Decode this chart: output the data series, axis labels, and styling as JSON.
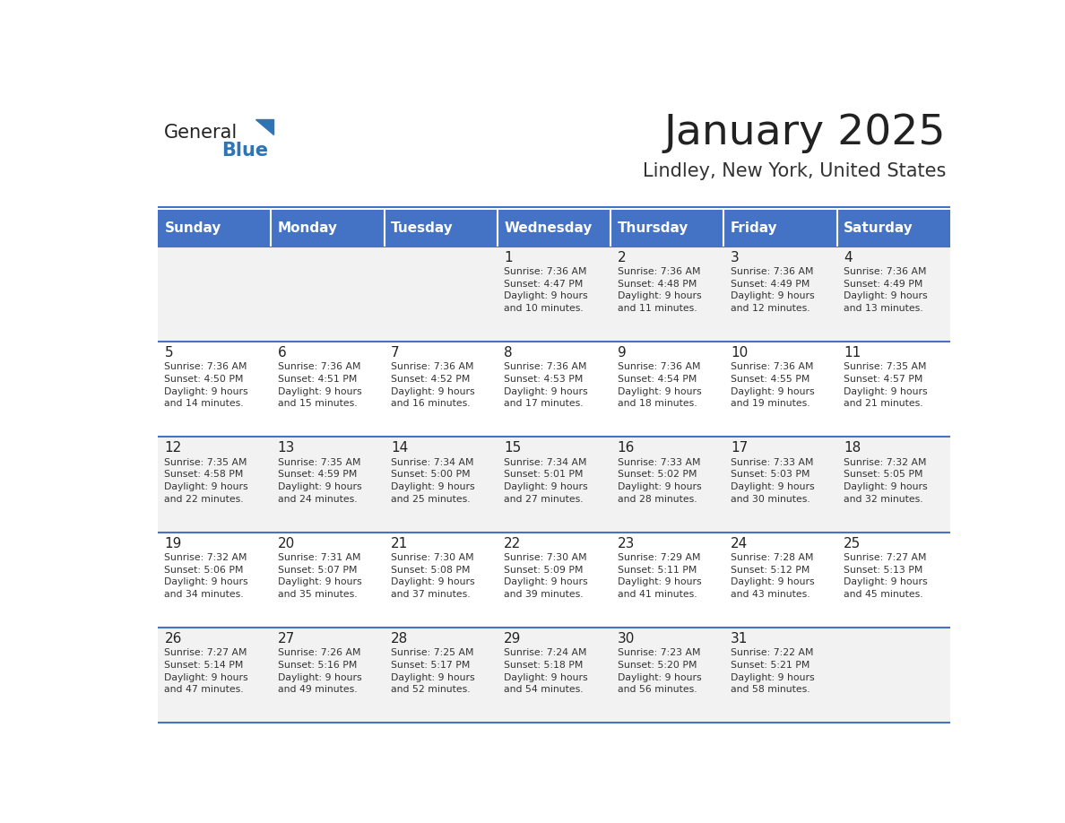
{
  "title": "January 2025",
  "subtitle": "Lindley, New York, United States",
  "days_of_week": [
    "Sunday",
    "Monday",
    "Tuesday",
    "Wednesday",
    "Thursday",
    "Friday",
    "Saturday"
  ],
  "header_bg": "#4472C4",
  "header_text": "#FFFFFF",
  "row_bg_odd": "#F2F2F2",
  "row_bg_even": "#FFFFFF",
  "cell_text": "#333333",
  "day_number_color": "#222222",
  "title_color": "#222222",
  "subtitle_color": "#333333",
  "divider_color": "#4472C4",
  "logo_general_color": "#222222",
  "logo_blue_color": "#2E75B6",
  "weeks": [
    [
      {
        "day": null,
        "text": ""
      },
      {
        "day": null,
        "text": ""
      },
      {
        "day": null,
        "text": ""
      },
      {
        "day": 1,
        "text": "Sunrise: 7:36 AM\nSunset: 4:47 PM\nDaylight: 9 hours\nand 10 minutes."
      },
      {
        "day": 2,
        "text": "Sunrise: 7:36 AM\nSunset: 4:48 PM\nDaylight: 9 hours\nand 11 minutes."
      },
      {
        "day": 3,
        "text": "Sunrise: 7:36 AM\nSunset: 4:49 PM\nDaylight: 9 hours\nand 12 minutes."
      },
      {
        "day": 4,
        "text": "Sunrise: 7:36 AM\nSunset: 4:49 PM\nDaylight: 9 hours\nand 13 minutes."
      }
    ],
    [
      {
        "day": 5,
        "text": "Sunrise: 7:36 AM\nSunset: 4:50 PM\nDaylight: 9 hours\nand 14 minutes."
      },
      {
        "day": 6,
        "text": "Sunrise: 7:36 AM\nSunset: 4:51 PM\nDaylight: 9 hours\nand 15 minutes."
      },
      {
        "day": 7,
        "text": "Sunrise: 7:36 AM\nSunset: 4:52 PM\nDaylight: 9 hours\nand 16 minutes."
      },
      {
        "day": 8,
        "text": "Sunrise: 7:36 AM\nSunset: 4:53 PM\nDaylight: 9 hours\nand 17 minutes."
      },
      {
        "day": 9,
        "text": "Sunrise: 7:36 AM\nSunset: 4:54 PM\nDaylight: 9 hours\nand 18 minutes."
      },
      {
        "day": 10,
        "text": "Sunrise: 7:36 AM\nSunset: 4:55 PM\nDaylight: 9 hours\nand 19 minutes."
      },
      {
        "day": 11,
        "text": "Sunrise: 7:35 AM\nSunset: 4:57 PM\nDaylight: 9 hours\nand 21 minutes."
      }
    ],
    [
      {
        "day": 12,
        "text": "Sunrise: 7:35 AM\nSunset: 4:58 PM\nDaylight: 9 hours\nand 22 minutes."
      },
      {
        "day": 13,
        "text": "Sunrise: 7:35 AM\nSunset: 4:59 PM\nDaylight: 9 hours\nand 24 minutes."
      },
      {
        "day": 14,
        "text": "Sunrise: 7:34 AM\nSunset: 5:00 PM\nDaylight: 9 hours\nand 25 minutes."
      },
      {
        "day": 15,
        "text": "Sunrise: 7:34 AM\nSunset: 5:01 PM\nDaylight: 9 hours\nand 27 minutes."
      },
      {
        "day": 16,
        "text": "Sunrise: 7:33 AM\nSunset: 5:02 PM\nDaylight: 9 hours\nand 28 minutes."
      },
      {
        "day": 17,
        "text": "Sunrise: 7:33 AM\nSunset: 5:03 PM\nDaylight: 9 hours\nand 30 minutes."
      },
      {
        "day": 18,
        "text": "Sunrise: 7:32 AM\nSunset: 5:05 PM\nDaylight: 9 hours\nand 32 minutes."
      }
    ],
    [
      {
        "day": 19,
        "text": "Sunrise: 7:32 AM\nSunset: 5:06 PM\nDaylight: 9 hours\nand 34 minutes."
      },
      {
        "day": 20,
        "text": "Sunrise: 7:31 AM\nSunset: 5:07 PM\nDaylight: 9 hours\nand 35 minutes."
      },
      {
        "day": 21,
        "text": "Sunrise: 7:30 AM\nSunset: 5:08 PM\nDaylight: 9 hours\nand 37 minutes."
      },
      {
        "day": 22,
        "text": "Sunrise: 7:30 AM\nSunset: 5:09 PM\nDaylight: 9 hours\nand 39 minutes."
      },
      {
        "day": 23,
        "text": "Sunrise: 7:29 AM\nSunset: 5:11 PM\nDaylight: 9 hours\nand 41 minutes."
      },
      {
        "day": 24,
        "text": "Sunrise: 7:28 AM\nSunset: 5:12 PM\nDaylight: 9 hours\nand 43 minutes."
      },
      {
        "day": 25,
        "text": "Sunrise: 7:27 AM\nSunset: 5:13 PM\nDaylight: 9 hours\nand 45 minutes."
      }
    ],
    [
      {
        "day": 26,
        "text": "Sunrise: 7:27 AM\nSunset: 5:14 PM\nDaylight: 9 hours\nand 47 minutes."
      },
      {
        "day": 27,
        "text": "Sunrise: 7:26 AM\nSunset: 5:16 PM\nDaylight: 9 hours\nand 49 minutes."
      },
      {
        "day": 28,
        "text": "Sunrise: 7:25 AM\nSunset: 5:17 PM\nDaylight: 9 hours\nand 52 minutes."
      },
      {
        "day": 29,
        "text": "Sunrise: 7:24 AM\nSunset: 5:18 PM\nDaylight: 9 hours\nand 54 minutes."
      },
      {
        "day": 30,
        "text": "Sunrise: 7:23 AM\nSunset: 5:20 PM\nDaylight: 9 hours\nand 56 minutes."
      },
      {
        "day": 31,
        "text": "Sunrise: 7:22 AM\nSunset: 5:21 PM\nDaylight: 9 hours\nand 58 minutes."
      },
      {
        "day": null,
        "text": ""
      }
    ]
  ]
}
